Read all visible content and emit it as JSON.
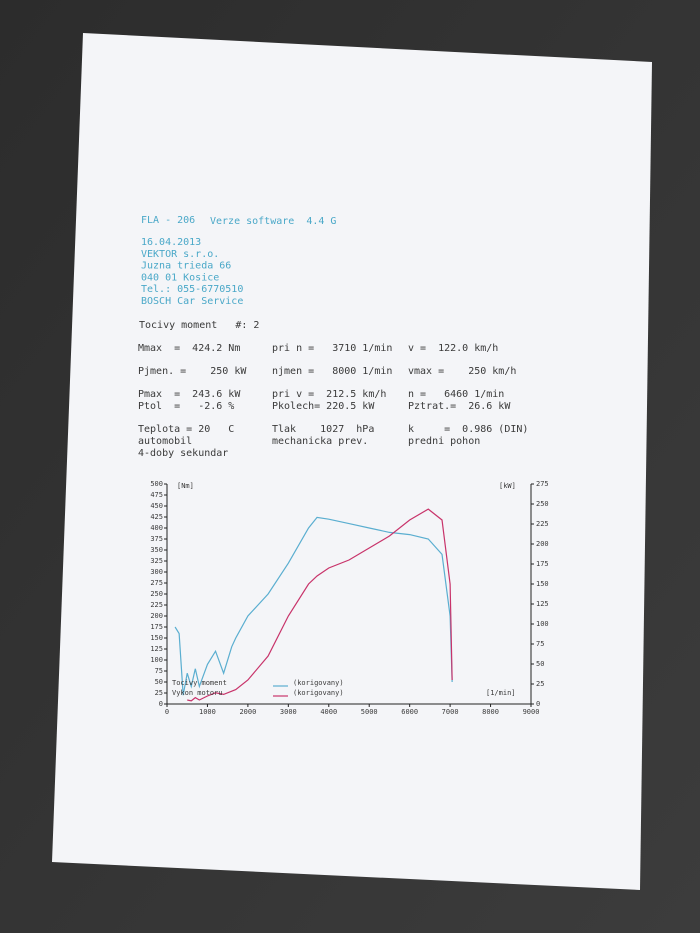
{
  "header": {
    "program": "FLA - 206",
    "version": "Verze software  4.4 G",
    "address": [
      "16.04.2013",
      "VEKTOR s.r.o.",
      "Juzna trieda 66",
      "040 01 Kosice",
      "Tel.: 055-6770510",
      "BOSCH Car Service"
    ]
  },
  "test_title": "Tocivy moment   #: 2",
  "params": [
    [
      "Mmax  =  424.2 Nm",
      "pri n =   3710 1/min",
      "v =  122.0 km/h"
    ],
    [
      "Pjmen. =    250 kW",
      "njmen =   8000 1/min",
      "vmax =    250 km/h"
    ],
    [
      "Pmax  =  243.6 kW",
      "pri v =  212.5 km/h",
      "n =   6460 1/min"
    ],
    [
      "Ptol  =   -2.6 %",
      "Pkolech= 220.5 kW",
      "Pztrat.=  26.6 kW"
    ],
    [
      "Teplota = 20   C",
      "Tlak    1027  hPa",
      "k     =  0.986 (DIN)"
    ],
    [
      "automobil",
      "mechanicka prev.",
      "predni pohon"
    ],
    [
      "4-doby sekundar"
    ]
  ],
  "chart_data": {
    "type": "line",
    "ylabel": "[Nm]",
    "y2label": "[kW]",
    "xlabel": "[1/min]",
    "legend_note": "(korigovany)",
    "x": [
      200,
      300,
      400,
      500,
      600,
      700,
      800,
      1000,
      1200,
      1400,
      1600,
      1700,
      2000,
      2500,
      3000,
      3500,
      3710,
      4000,
      4500,
      5000,
      5500,
      6000,
      6460,
      6800,
      7000,
      7050
    ],
    "series": [
      {
        "name": "Tocivy moment",
        "color": "#5aaed0",
        "values": [
          175,
          160,
          20,
          70,
          40,
          80,
          40,
          90,
          120,
          70,
          130,
          150,
          200,
          250,
          320,
          400,
          424.2,
          420,
          410,
          400,
          390,
          385,
          375,
          340,
          200,
          50
        ]
      },
      {
        "name": "Vykon motoru",
        "color": "#c8336a",
        "axis": "y2",
        "values": [
          null,
          null,
          null,
          5,
          4,
          8,
          5,
          10,
          14,
          12,
          16,
          18,
          30,
          60,
          110,
          150,
          160,
          170,
          180,
          195,
          210,
          230,
          243.6,
          230,
          150,
          30
        ]
      }
    ],
    "xlim": [
      0,
      9000
    ],
    "xticks": [
      0,
      1000,
      2000,
      3000,
      4000,
      5000,
      6000,
      7000,
      8000,
      9000
    ],
    "ylim": [
      0,
      500
    ],
    "yticks": [
      0,
      25,
      50,
      75,
      100,
      125,
      150,
      175,
      200,
      225,
      250,
      275,
      300,
      325,
      350,
      375,
      400,
      425,
      450,
      475,
      500
    ],
    "y2lim": [
      0,
      275
    ],
    "y2ticks": [
      0,
      25,
      50,
      75,
      100,
      125,
      150,
      175,
      200,
      225,
      250,
      275
    ]
  }
}
